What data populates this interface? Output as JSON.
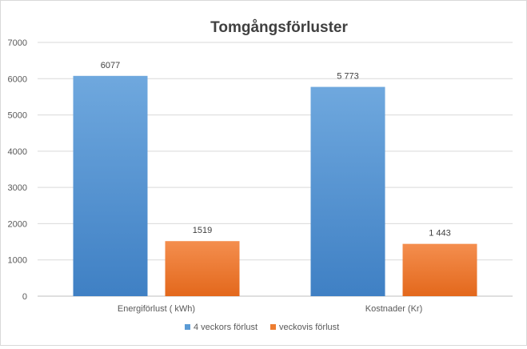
{
  "chart_data": {
    "type": "bar",
    "title": "Tomgångsförluster",
    "categories": [
      "Energiförlust  ( kWh)",
      "Kostnader (Kr)"
    ],
    "series": [
      {
        "name": "4 veckors förlust",
        "values": [
          6077,
          5773
        ],
        "labels": [
          "6077",
          "5 773"
        ],
        "color": "#5b9bd5"
      },
      {
        "name": "veckovis förlust",
        "values": [
          1519,
          1443
        ],
        "labels": [
          "1519",
          "1 443"
        ],
        "color": "#ed7d31"
      }
    ],
    "ylim": [
      0,
      7000
    ],
    "yticks": [
      "0",
      "1000",
      "2000",
      "3000",
      "4000",
      "5000",
      "6000",
      "7000"
    ],
    "grid": true,
    "legend_position": "bottom"
  }
}
